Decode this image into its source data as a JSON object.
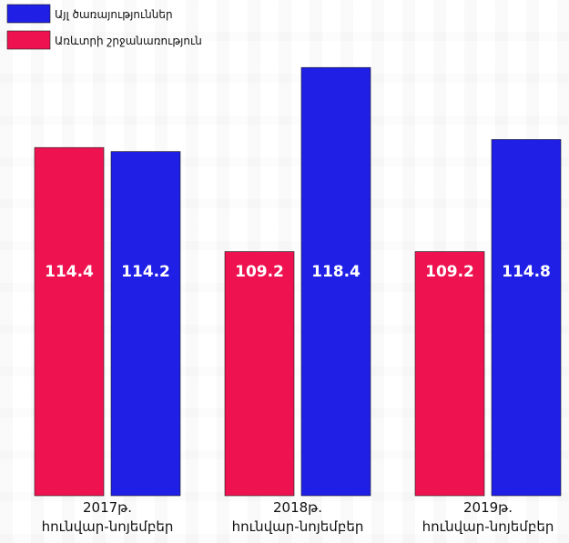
{
  "chart_data": {
    "type": "bar",
    "categories": [
      [
        "2017թ.",
        "հունվար-նոյեմբեր"
      ],
      [
        "2018թ.",
        "հունվար-նոյեմբեր"
      ],
      [
        "2019թ.",
        "հունվար-նոյեմբեր"
      ]
    ],
    "series": [
      {
        "name": "Առևտրի շրջանառություն",
        "color": "#ee1350",
        "values": [
          114.4,
          109.2,
          109.2
        ]
      },
      {
        "name": "Այլ ծառայություններ",
        "color": "#1f1fe6",
        "values": [
          114.2,
          118.4,
          114.8
        ]
      }
    ],
    "legend_order": [
      1,
      0
    ],
    "legend_position": "top-left",
    "value_labels": "inside-middle",
    "ylim": [
      97,
      119.5
    ],
    "grid": false,
    "title": "",
    "xlabel": "",
    "ylabel": ""
  }
}
